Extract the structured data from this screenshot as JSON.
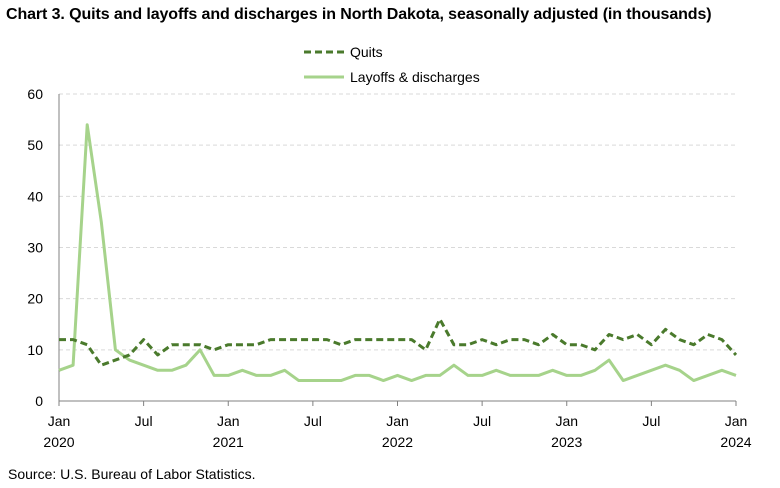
{
  "title": "Chart 3. Quits and layoffs and discharges in North Dakota, seasonally adjusted (in thousands)",
  "source": "Source: U.S. Bureau of Labor Statistics.",
  "chart_data": {
    "type": "line",
    "title": "Chart 3. Quits and layoffs and discharges in North Dakota, seasonally adjusted (in thousands)",
    "xlabel": "",
    "ylabel": "",
    "ylim": [
      0,
      60
    ],
    "yticks": [
      0,
      10,
      20,
      30,
      40,
      50,
      60
    ],
    "grid": "horizontal dashed",
    "legend": "top-center",
    "x_start": "2020-01",
    "x_end": "2024-01",
    "x_ticks": [
      {
        "label": "Jan",
        "year": "2020",
        "index": 0
      },
      {
        "label": "Jul",
        "year": "",
        "index": 6
      },
      {
        "label": "Jan",
        "year": "2021",
        "index": 12
      },
      {
        "label": "Jul",
        "year": "",
        "index": 18
      },
      {
        "label": "Jan",
        "year": "2022",
        "index": 24
      },
      {
        "label": "Jul",
        "year": "",
        "index": 30
      },
      {
        "label": "Jan",
        "year": "2023",
        "index": 36
      },
      {
        "label": "Jul",
        "year": "",
        "index": 42
      },
      {
        "label": "Jan",
        "year": "2024",
        "index": 48
      }
    ],
    "series": [
      {
        "name": "Quits",
        "color": "#4a7a2c",
        "style": "dashed",
        "values": [
          12,
          12,
          11,
          7,
          8,
          9,
          12,
          9,
          11,
          11,
          11,
          10,
          11,
          11,
          11,
          12,
          12,
          12,
          12,
          12,
          11,
          12,
          12,
          12,
          12,
          12,
          10,
          16,
          11,
          11,
          12,
          11,
          12,
          12,
          11,
          13,
          11,
          11,
          10,
          13,
          12,
          13,
          11,
          14,
          12,
          11,
          13,
          12,
          9
        ]
      },
      {
        "name": "Layoffs & discharges",
        "color": "#a6d38b",
        "style": "solid",
        "values": [
          6,
          7,
          54,
          35,
          10,
          8,
          7,
          6,
          6,
          7,
          10,
          5,
          5,
          6,
          5,
          5,
          6,
          4,
          4,
          4,
          4,
          5,
          5,
          4,
          5,
          4,
          5,
          5,
          7,
          5,
          5,
          6,
          5,
          5,
          5,
          6,
          5,
          5,
          6,
          8,
          4,
          5,
          6,
          7,
          6,
          4,
          5,
          6,
          5
        ]
      }
    ]
  }
}
